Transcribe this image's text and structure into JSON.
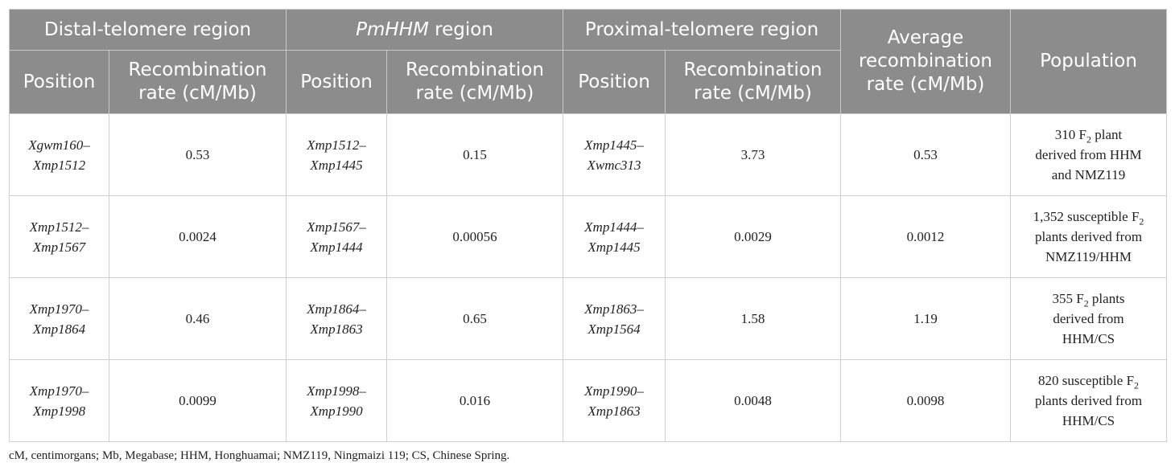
{
  "header": {
    "groups": [
      {
        "pre": "Distal-telomere region",
        "italic": "",
        "post": ""
      },
      {
        "pre": "",
        "italic": "PmHHM",
        "post": " region"
      },
      {
        "pre": "Proximal-telomere region",
        "italic": "",
        "post": ""
      }
    ],
    "position": "Position",
    "recomb_line1": "Recombination",
    "recomb_line2": "rate (cM/Mb)",
    "average_line1": "Average",
    "average_line2": "recombination",
    "average_line3": "rate (cM/Mb)",
    "population": "Population"
  },
  "rows": [
    {
      "cells": [
        {
          "l1": "Xgwm160–",
          "l2": "Xmp1512"
        },
        {
          "val": "0.53"
        },
        {
          "l1": "Xmp1512–",
          "l2": "Xmp1445"
        },
        {
          "val": "0.15"
        },
        {
          "l1": "Xmp1445–",
          "l2": "Xwmc313"
        },
        {
          "val": "3.73"
        },
        {
          "val": "0.53"
        }
      ],
      "population": {
        "l1a": "310 F",
        "sub": "2",
        "l1b": " plant",
        "l2": "derived from HHM",
        "l3": "and NMZ119"
      }
    },
    {
      "cells": [
        {
          "l1": "Xmp1512–",
          "l2": "Xmp1567"
        },
        {
          "val": "0.0024"
        },
        {
          "l1": "Xmp1567–",
          "l2": "Xmp1444"
        },
        {
          "val": "0.00056"
        },
        {
          "l1": "Xmp1444–",
          "l2": "Xmp1445"
        },
        {
          "val": "0.0029"
        },
        {
          "val": "0.0012"
        }
      ],
      "population": {
        "l1a": "1,352 susceptible F",
        "sub": "2",
        "l1b": "",
        "l2": "plants derived from",
        "l3": "NMZ119/HHM"
      }
    },
    {
      "cells": [
        {
          "l1": "Xmp1970–",
          "l2": "Xmp1864"
        },
        {
          "val": "0.46"
        },
        {
          "l1": "Xmp1864–",
          "l2": "Xmp1863"
        },
        {
          "val": "0.65"
        },
        {
          "l1": "Xmp1863–",
          "l2": "Xmp1564"
        },
        {
          "val": "1.58"
        },
        {
          "val": "1.19"
        }
      ],
      "population": {
        "l1a": "355 F",
        "sub": "2",
        "l1b": " plants",
        "l2": "derived from",
        "l3": "HHM/CS"
      }
    },
    {
      "cells": [
        {
          "l1": "Xmp1970–",
          "l2": "Xmp1998"
        },
        {
          "val": "0.0099"
        },
        {
          "l1": "Xmp1998–",
          "l2": "Xmp1990"
        },
        {
          "val": "0.016"
        },
        {
          "l1": "Xmp1990–",
          "l2": "Xmp1863"
        },
        {
          "val": "0.0048"
        },
        {
          "val": "0.0098"
        }
      ],
      "population": {
        "l1a": "820 susceptible F",
        "sub": "2",
        "l1b": "",
        "l2": "plants derived from",
        "l3": "HHM/CS"
      }
    }
  ],
  "footnote": "cM, centimorgans; Mb, Megabase; HHM, Honghuamai; NMZ119, Ningmaizi 119; CS, Chinese Spring."
}
